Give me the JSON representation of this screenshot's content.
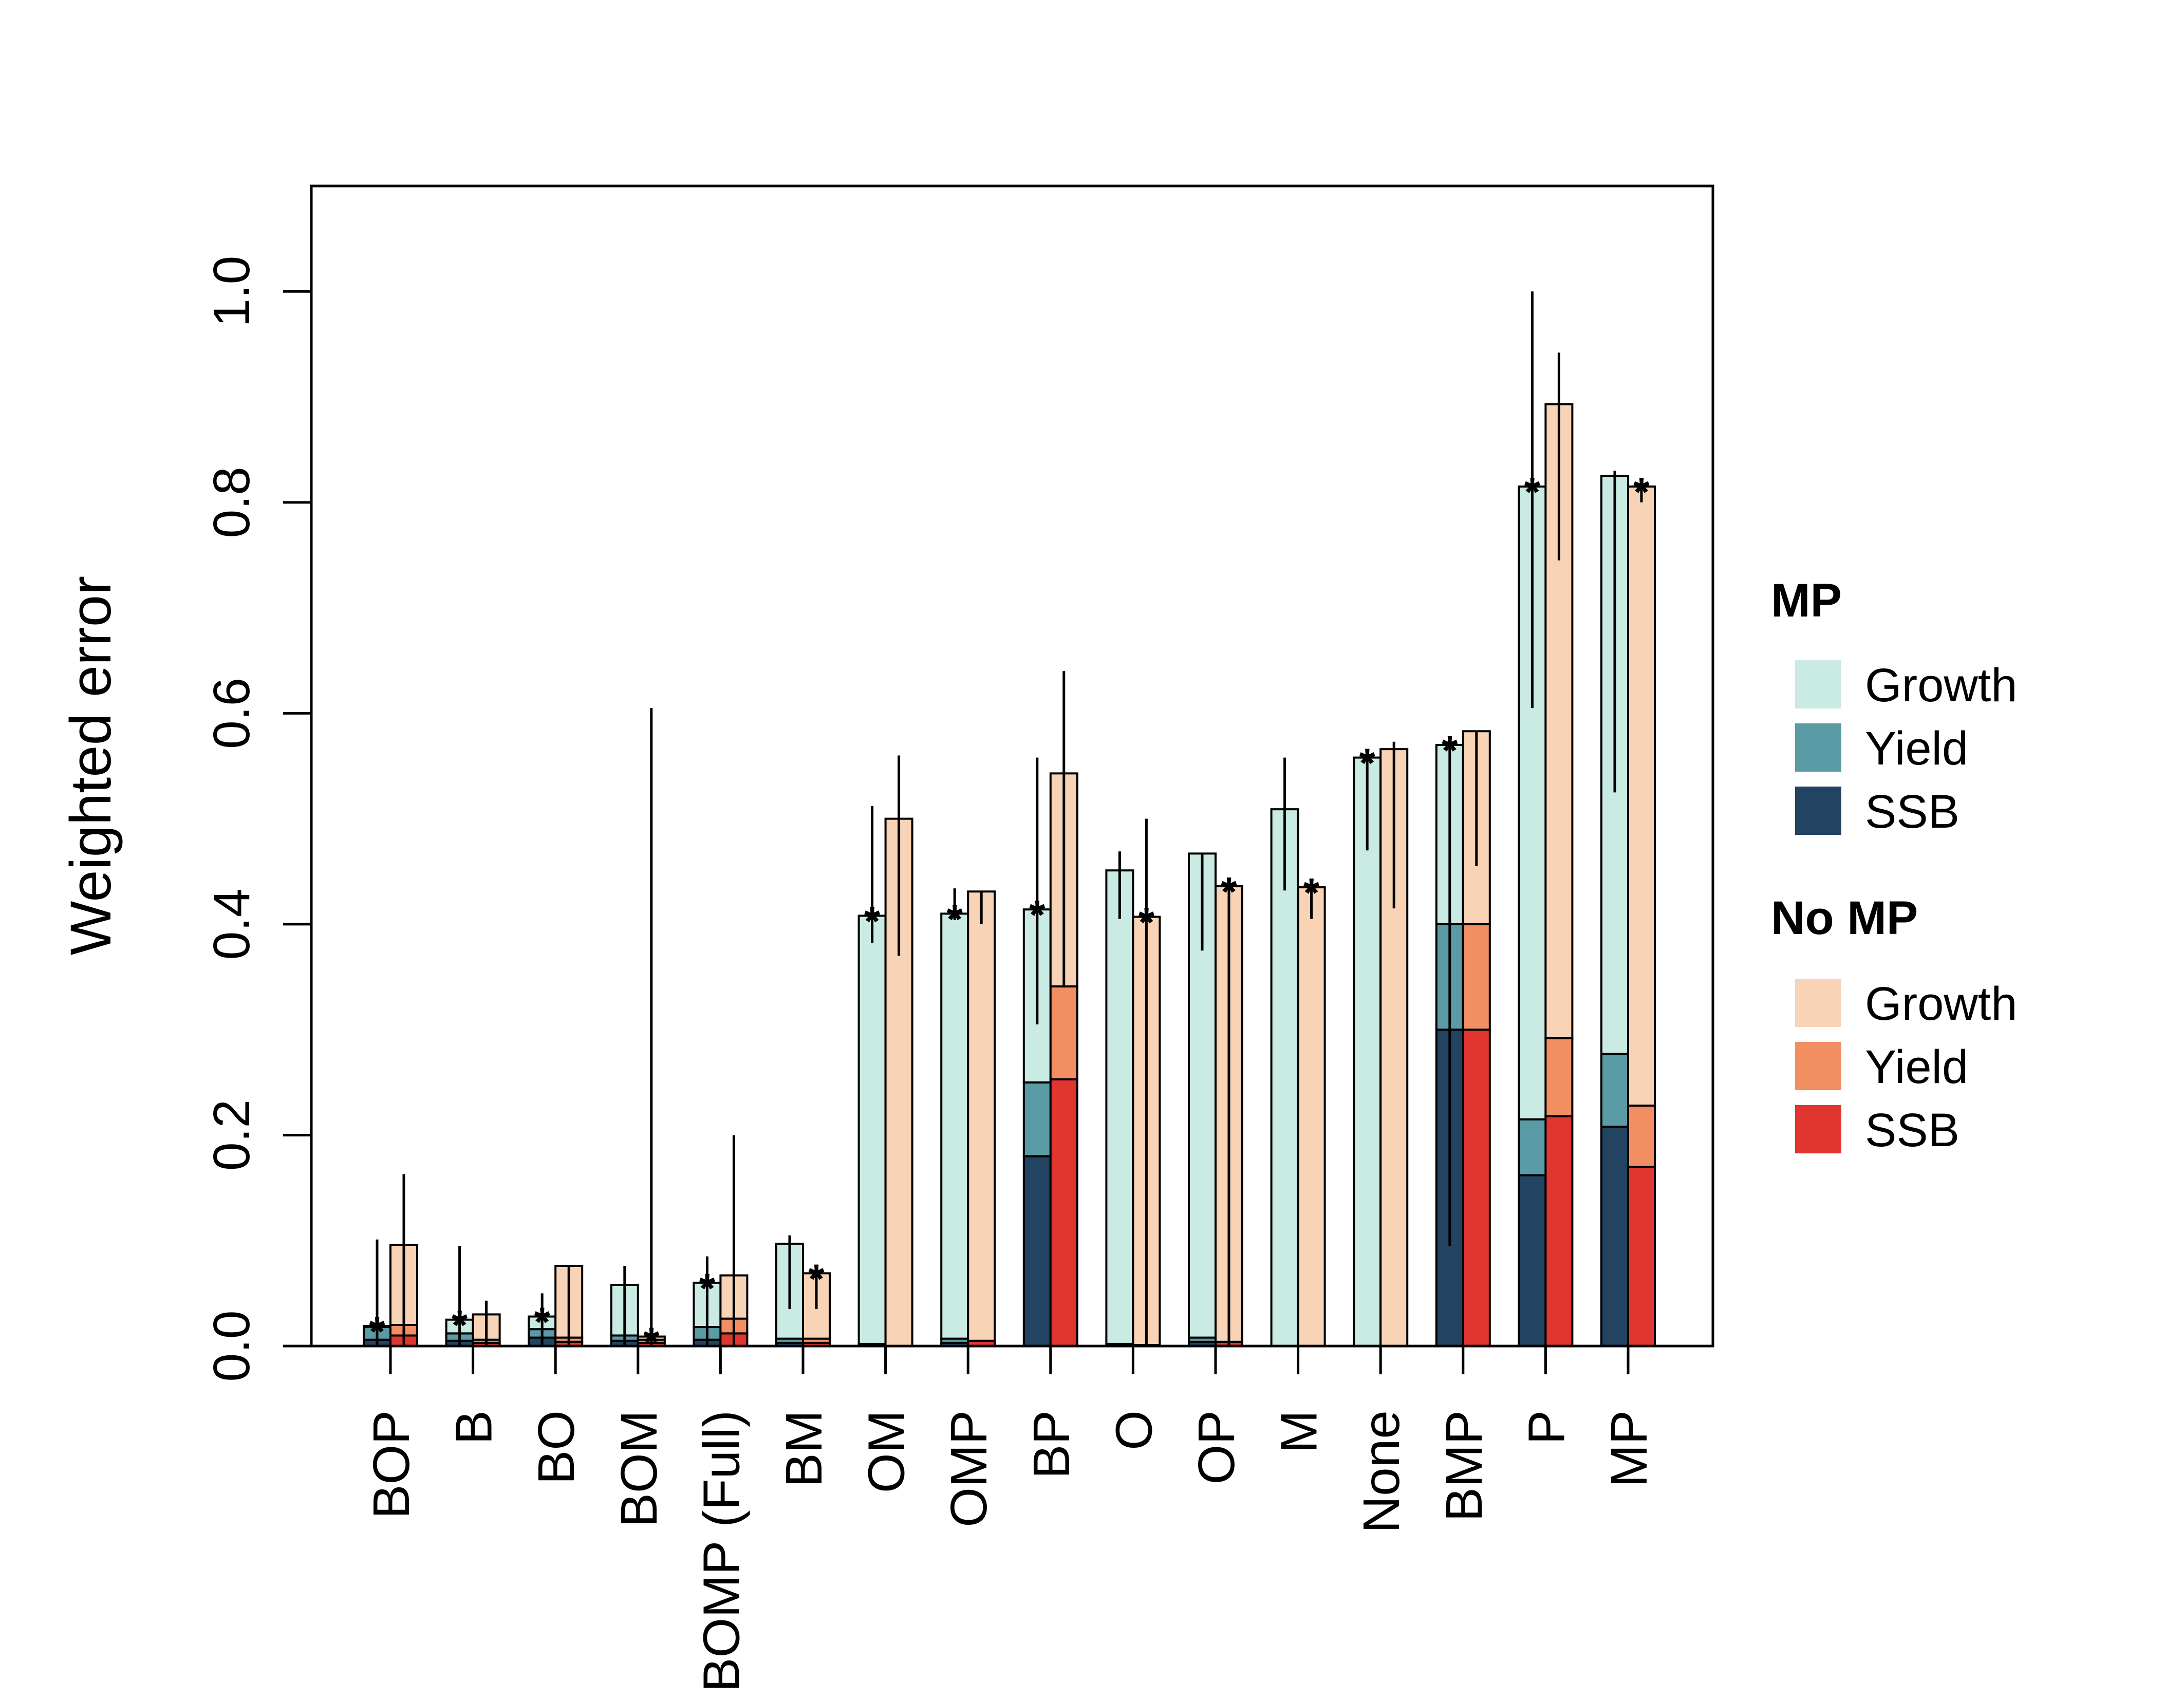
{
  "chart_data": {
    "type": "bar",
    "title": "",
    "xlabel": "",
    "ylabel": "Weighted error",
    "ylim": [
      0,
      1.1
    ],
    "yticks": [
      "0.0",
      "0.2",
      "0.4",
      "0.6",
      "0.8",
      "1.0"
    ],
    "grid": false,
    "legend_placement": "right",
    "categories": [
      "BOP",
      "B",
      "BO",
      "BOM",
      "BOMP (Full)",
      "BM",
      "OM",
      "OMP",
      "BP",
      "O",
      "OP",
      "M",
      "None",
      "BMP",
      "P",
      "MP"
    ],
    "groups": [
      {
        "name": "MP",
        "components": [
          "Growth",
          "Yield",
          "SSB"
        ],
        "colors": [
          "#c9ebe3",
          "#5b9ba6",
          "#224361"
        ],
        "ssb": [
          0.006,
          0.005,
          0.008,
          0.005,
          0.006,
          0.003,
          0.001,
          0.003,
          0.18,
          0.001,
          0.004,
          0.0,
          0.0,
          0.3,
          0.162,
          0.208
        ],
        "yield": [
          0.012,
          0.007,
          0.008,
          0.005,
          0.012,
          0.004,
          0.001,
          0.004,
          0.07,
          0.001,
          0.004,
          0.0,
          0.0,
          0.1,
          0.053,
          0.069
        ],
        "total": [
          0.019,
          0.025,
          0.028,
          0.058,
          0.06,
          0.097,
          0.408,
          0.41,
          0.414,
          0.451,
          0.467,
          0.509,
          0.558,
          0.57,
          0.815,
          0.825
        ],
        "err_low": [
          0.0,
          0.0,
          0.0,
          0.0,
          0.0,
          0.035,
          0.382,
          0.404,
          0.305,
          0.405,
          0.375,
          0.432,
          0.47,
          0.095,
          0.605,
          0.525
        ],
        "err_high": [
          0.101,
          0.095,
          0.05,
          0.076,
          0.085,
          0.105,
          0.512,
          0.434,
          0.558,
          0.469,
          0.467,
          0.558,
          0.558,
          0.57,
          1.0,
          0.83
        ],
        "star": [
          true,
          true,
          true,
          false,
          true,
          false,
          true,
          true,
          true,
          false,
          false,
          false,
          true,
          true,
          true,
          false
        ]
      },
      {
        "name": "No MP",
        "components": [
          "Growth",
          "Yield",
          "SSB"
        ],
        "colors": [
          "#f9d3b5",
          "#f18f63",
          "#e13530"
        ],
        "ssb": [
          0.01,
          0.003,
          0.004,
          0.003,
          0.012,
          0.003,
          0.0,
          0.005,
          0.253,
          0.001,
          0.004,
          0.0,
          0.0,
          0.3,
          0.218,
          0.17
        ],
        "yield": [
          0.01,
          0.003,
          0.004,
          0.003,
          0.014,
          0.004,
          0.0,
          0.0,
          0.088,
          0.0,
          0.0,
          0.0,
          0.0,
          0.1,
          0.074,
          0.058
        ],
        "total": [
          0.096,
          0.03,
          0.076,
          0.009,
          0.067,
          0.069,
          0.5,
          0.431,
          0.543,
          0.407,
          0.436,
          0.435,
          0.566,
          0.583,
          0.893,
          0.815
        ],
        "err_low": [
          0.0,
          0.0,
          0.0,
          0.0,
          0.0,
          0.035,
          0.37,
          0.4,
          0.34,
          0.0,
          0.0,
          0.405,
          0.415,
          0.455,
          0.745,
          0.8
        ],
        "err_high": [
          0.163,
          0.043,
          0.076,
          0.605,
          0.2,
          0.069,
          0.56,
          0.431,
          0.64,
          0.5,
          0.436,
          0.435,
          0.573,
          0.583,
          0.942,
          0.815
        ],
        "star": [
          false,
          false,
          false,
          true,
          false,
          true,
          false,
          false,
          false,
          true,
          true,
          true,
          false,
          false,
          false,
          true
        ]
      }
    ]
  }
}
